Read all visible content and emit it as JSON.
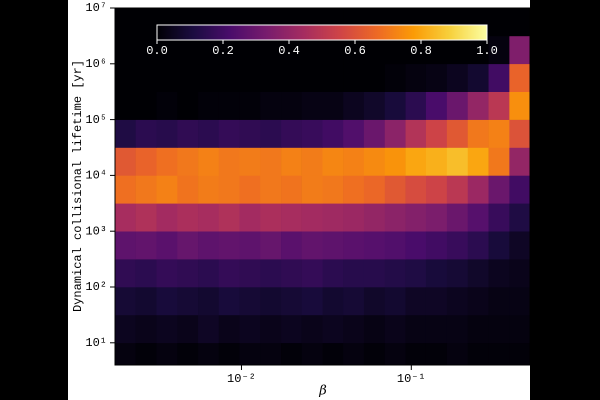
{
  "chart_data": {
    "type": "heatmap2d",
    "xlabel": "β",
    "ylabel": "Dynamical collisional lifetime [yr]",
    "xlog": true,
    "ylog": true,
    "xlim": [
      0.0018,
      0.5
    ],
    "ylim": [
      4,
      10000000
    ],
    "xticks": [
      {
        "value": 0.01,
        "label": "10⁻²"
      },
      {
        "value": 0.1,
        "label": "10⁻¹"
      }
    ],
    "yticks": [
      {
        "value": 10,
        "label": "10¹"
      },
      {
        "value": 100,
        "label": "10²"
      },
      {
        "value": 1000,
        "label": "10³"
      },
      {
        "value": 10000,
        "label": "10⁴"
      },
      {
        "value": 100000,
        "label": "10⁵"
      },
      {
        "value": 1000000,
        "label": "10⁶"
      },
      {
        "value": 10000000,
        "label": "10⁷"
      }
    ],
    "x_edges": [
      0.0018,
      0.00238,
      0.00316,
      0.00419,
      0.00555,
      0.00735,
      0.00973,
      0.0129,
      0.0171,
      0.0226,
      0.03,
      0.0397,
      0.0526,
      0.0698,
      0.0925,
      0.122,
      0.162,
      0.215,
      0.285,
      0.378,
      0.5
    ],
    "y_edges": [
      4,
      10,
      31.6,
      100,
      316,
      1000,
      3162,
      10000,
      31623,
      100000,
      316228,
      1000000,
      3162278,
      10000000
    ],
    "values": [
      [
        0.02,
        0.01,
        0.02,
        0.01,
        0.02,
        0.01,
        0.02,
        0.02,
        0.01,
        0.02,
        0.01,
        0.02,
        0.01,
        0.02,
        0.01,
        0.01,
        0.02,
        0.01,
        0.01,
        0.01
      ],
      [
        0.05,
        0.04,
        0.05,
        0.04,
        0.06,
        0.04,
        0.05,
        0.04,
        0.05,
        0.04,
        0.05,
        0.04,
        0.03,
        0.04,
        0.03,
        0.03,
        0.03,
        0.02,
        0.02,
        0.02
      ],
      [
        0.09,
        0.08,
        0.1,
        0.09,
        0.08,
        0.1,
        0.09,
        0.08,
        0.09,
        0.1,
        0.08,
        0.09,
        0.07,
        0.08,
        0.06,
        0.06,
        0.05,
        0.04,
        0.03,
        0.03
      ],
      [
        0.16,
        0.15,
        0.17,
        0.16,
        0.15,
        0.17,
        0.16,
        0.15,
        0.16,
        0.17,
        0.15,
        0.14,
        0.14,
        0.13,
        0.12,
        0.1,
        0.09,
        0.07,
        0.05,
        0.04
      ],
      [
        0.27,
        0.28,
        0.26,
        0.29,
        0.27,
        0.28,
        0.27,
        0.29,
        0.26,
        0.28,
        0.27,
        0.26,
        0.25,
        0.24,
        0.22,
        0.2,
        0.18,
        0.15,
        0.1,
        0.06
      ],
      [
        0.45,
        0.47,
        0.44,
        0.46,
        0.45,
        0.47,
        0.44,
        0.46,
        0.45,
        0.44,
        0.43,
        0.42,
        0.4,
        0.38,
        0.36,
        0.34,
        0.3,
        0.25,
        0.18,
        0.12
      ],
      [
        0.68,
        0.7,
        0.72,
        0.69,
        0.71,
        0.7,
        0.68,
        0.7,
        0.69,
        0.71,
        0.7,
        0.68,
        0.66,
        0.62,
        0.58,
        0.55,
        0.5,
        0.42,
        0.3,
        0.2
      ],
      [
        0.62,
        0.65,
        0.68,
        0.7,
        0.72,
        0.7,
        0.71,
        0.7,
        0.72,
        0.71,
        0.73,
        0.72,
        0.74,
        0.76,
        0.8,
        0.82,
        0.85,
        0.8,
        0.7,
        0.4
      ],
      [
        0.12,
        0.15,
        0.14,
        0.16,
        0.15,
        0.17,
        0.16,
        0.15,
        0.17,
        0.18,
        0.2,
        0.24,
        0.3,
        0.38,
        0.48,
        0.55,
        0.62,
        0.7,
        0.72,
        0.6
      ],
      [
        0,
        0,
        0.01,
        0,
        0.01,
        0.01,
        0.01,
        0.02,
        0.02,
        0.03,
        0.03,
        0.05,
        0.07,
        0.1,
        0.15,
        0.22,
        0.3,
        0.4,
        0.5,
        0.75
      ],
      [
        0,
        0,
        0,
        0,
        0,
        0,
        0,
        0,
        0,
        0,
        0,
        0,
        0,
        0.01,
        0.02,
        0.03,
        0.05,
        0.08,
        0.2,
        0.65
      ],
      [
        0,
        0,
        0,
        0,
        0,
        0,
        0,
        0,
        0,
        0,
        0,
        0,
        0,
        0,
        0,
        0,
        0,
        0,
        0.02,
        0.35
      ],
      [
        0,
        0,
        0,
        0,
        0,
        0,
        0,
        0,
        0,
        0,
        0,
        0,
        0,
        0,
        0,
        0,
        0,
        0,
        0,
        0
      ]
    ],
    "colormap": [
      "#000004",
      "#1b0c41",
      "#4a0c6b",
      "#781c6d",
      "#a52c60",
      "#cf4446",
      "#ed6925",
      "#fb9b06",
      "#f7d13d",
      "#fcffa4"
    ],
    "clim": [
      0,
      1
    ],
    "cbar_ticks": [
      {
        "value": 0,
        "label": "0.0"
      },
      {
        "value": 0.2,
        "label": "0.2"
      },
      {
        "value": 0.4,
        "label": "0.4"
      },
      {
        "value": 0.6,
        "label": "0.6"
      },
      {
        "value": 0.8,
        "label": "0.8"
      },
      {
        "value": 1,
        "label": "1.0"
      }
    ]
  }
}
